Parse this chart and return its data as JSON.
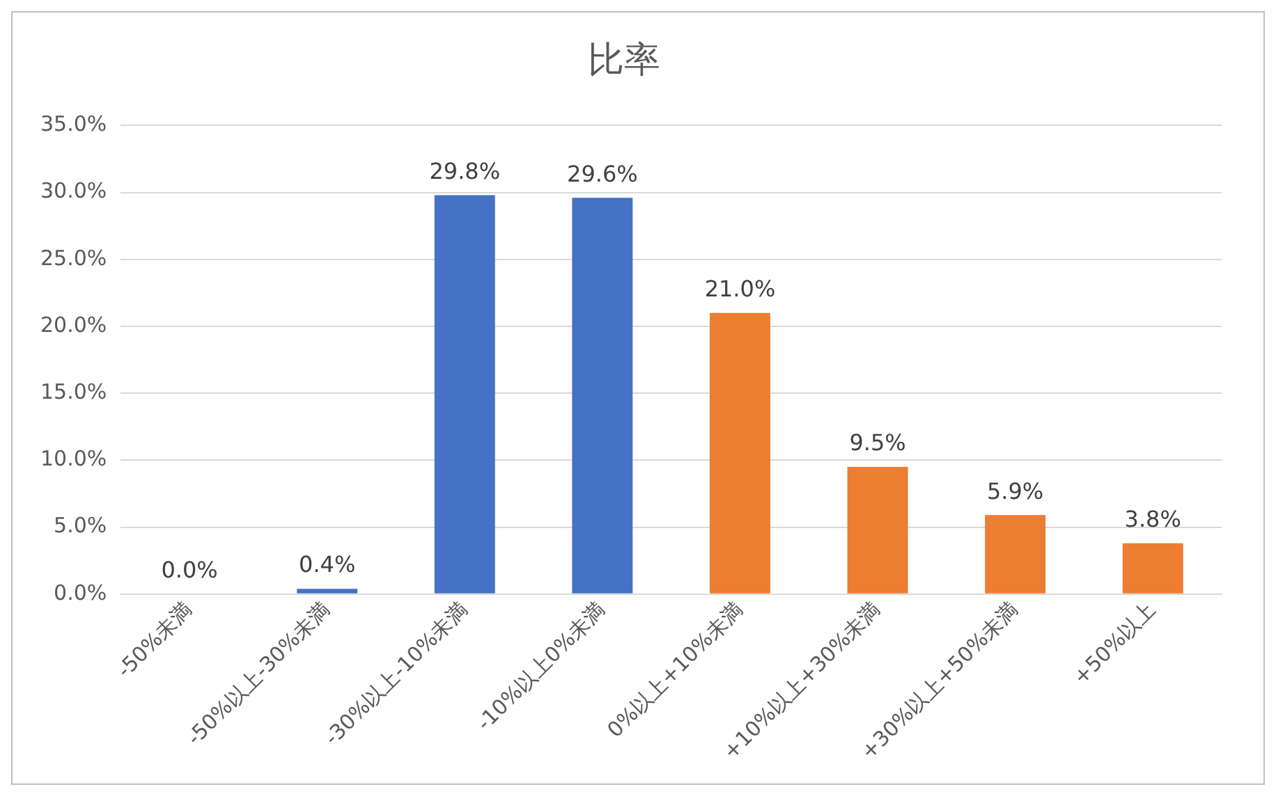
{
  "chart_data": {
    "type": "bar",
    "title": "比率",
    "categories": [
      "-50%未満",
      "-50%以上-30%未満",
      "-30%以上-10%未満",
      "-10%以上0%未満",
      "0%以上+10%未満",
      "+10%以上+30%未満",
      "+30%以上+50%未満",
      "+50%以上"
    ],
    "values": [
      0.0,
      0.4,
      29.8,
      29.6,
      21.0,
      9.5,
      5.9,
      3.8
    ],
    "colors": [
      "#4472c4",
      "#4472c4",
      "#4472c4",
      "#4472c4",
      "#ed7d31",
      "#ed7d31",
      "#ed7d31",
      "#ed7d31"
    ],
    "value_labels": [
      "0.0%",
      "0.4%",
      "29.8%",
      "29.6%",
      "21.0%",
      "9.5%",
      "5.9%",
      "3.8%"
    ],
    "ylim": [
      0,
      35
    ],
    "yticks": [
      {
        "value": 0,
        "label": "0.0%"
      },
      {
        "value": 5,
        "label": "5.0%"
      },
      {
        "value": 10,
        "label": "10.0%"
      },
      {
        "value": 15,
        "label": "15.0%"
      },
      {
        "value": 20,
        "label": "20.0%"
      },
      {
        "value": 25,
        "label": "25.0%"
      },
      {
        "value": 30,
        "label": "30.0%"
      },
      {
        "value": 35,
        "label": "35.0%"
      }
    ],
    "grid": "y",
    "legend": false
  }
}
